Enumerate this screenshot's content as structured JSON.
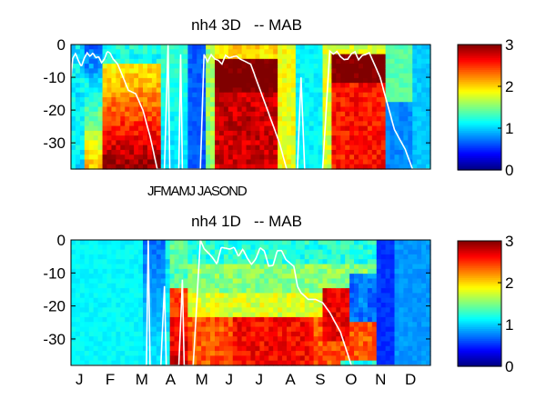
{
  "chart_data": [
    {
      "type": "heatmap",
      "title": "nh4 3D   -- MAB",
      "x_tick_labels_text": "JFMAMJ JASOND",
      "y_ticks": [
        0,
        -10,
        -20,
        -30
      ],
      "ylim": [
        -38,
        0
      ],
      "colorbar": {
        "ticks": [
          0,
          1,
          2,
          3
        ],
        "range": [
          0,
          3
        ],
        "colormap": "jet"
      },
      "overlay_line_color": "#ffffff"
    },
    {
      "type": "heatmap",
      "title": "nh4 1D   -- MAB",
      "x_tick_labels": [
        "J",
        "F",
        "M",
        "A",
        "M",
        "J",
        "J",
        "A",
        "S",
        "O",
        "N",
        "D"
      ],
      "y_ticks": [
        0,
        -10,
        -20,
        -30
      ],
      "ylim": [
        -38,
        0
      ],
      "colorbar": {
        "ticks": [
          0,
          1,
          2,
          3
        ],
        "range": [
          0,
          3
        ],
        "colormap": "jet"
      },
      "overlay_line_color": "#ffffff"
    }
  ]
}
